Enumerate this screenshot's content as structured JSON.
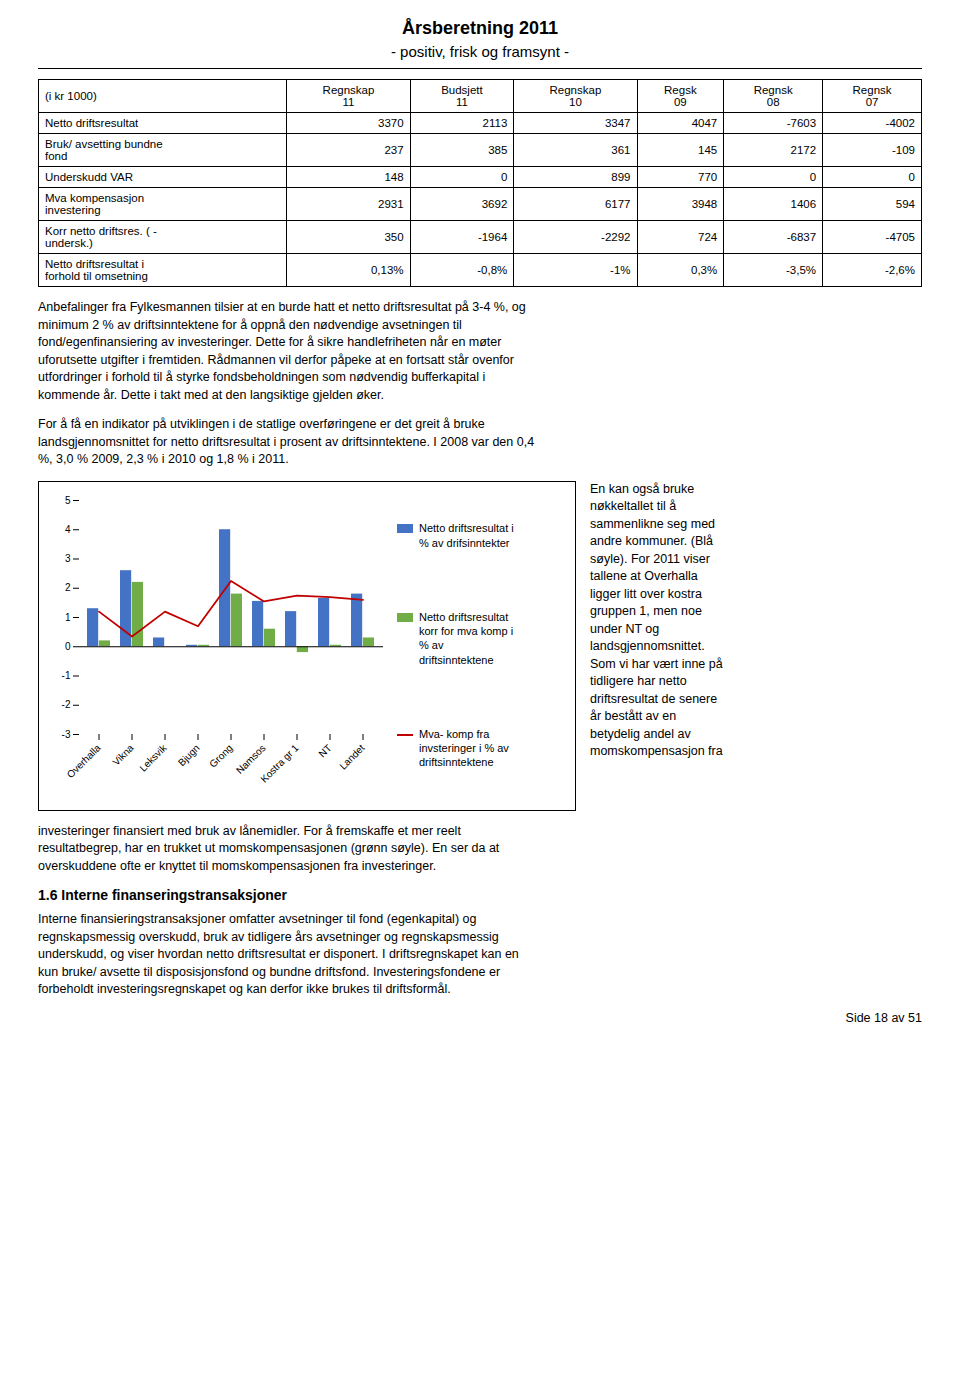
{
  "chart_data": {
    "type": "bar",
    "title": "Årsberetning 2011",
    "subtitle": "- positiv, frisk og framsynt -",
    "categories": [
      "Overhalla",
      "Vikna",
      "Leksvik",
      "Bjugn",
      "Grong",
      "Namsos",
      "Kostra gr 1",
      "NT",
      "Landet"
    ],
    "series": [
      {
        "name": "Netto driftsresultat i\n% av drifsinntekter",
        "type": "bar",
        "color": "#4472C4",
        "values": [
          1.3,
          2.6,
          0.3,
          0.05,
          4.0,
          1.55,
          1.2,
          1.65,
          1.8
        ]
      },
      {
        "name": "Netto driftsresultat\nkorr for mva komp i\n% av\ndriftsinntektene",
        "type": "bar",
        "color": "#70AD47",
        "values": [
          0.2,
          2.2,
          0.0,
          0.05,
          1.8,
          0.6,
          -0.2,
          0.05,
          0.3
        ]
      },
      {
        "name": "Mva- komp fra\ninvsteringer i % av\ndriftsinntektene",
        "type": "line",
        "color": "#C00000",
        "values": [
          1.2,
          0.35,
          1.2,
          0.7,
          2.25,
          1.55,
          1.75,
          1.7,
          1.6
        ]
      }
    ],
    "ylim": [
      -3,
      5
    ],
    "yticks": [
      -3,
      -2,
      -1,
      0,
      1,
      2,
      3,
      4,
      5
    ],
    "grid": false,
    "legend": "right",
    "table": {
      "columns": [
        "(i kr 1000)",
        "Regnskap\n11",
        "Budsjett\n11",
        "Regnskap\n10",
        "Regsk\n09",
        "Regnsk\n08",
        "Regnsk\n07"
      ],
      "rows": [
        [
          "Netto driftsresultat",
          "3370",
          "2113",
          "3347",
          "4047",
          "-7603",
          "-4002"
        ],
        [
          "Bruk/ avsetting bundne\nfond",
          "237",
          "385",
          "361",
          "145",
          "2172",
          "-109"
        ],
        [
          "Underskudd VAR",
          "148",
          "0",
          "899",
          "770",
          "0",
          "0"
        ],
        [
          "Mva kompensasjon\ninvestering",
          "2931",
          "3692",
          "6177",
          "3948",
          "1406",
          "594"
        ],
        [
          "Korr netto driftsres. ( -\nundersk.)",
          "350",
          "-1964",
          "-2292",
          "724",
          "-6837",
          "-4705"
        ],
        [
          "Netto driftsresultat i\nforhold til omsetning",
          "0,13%",
          "-0,8%",
          "-1%",
          "0,3%",
          "-3,5%",
          "-2,6%"
        ]
      ]
    },
    "annotations": [
      "Anbefalinger fra Fylkesmannen tilsier at en burde hatt et netto driftsresultat på 3-4 %, og\nminimum 2 % av driftsinntektene for å oppnå den nødvendige avsetningen til\nfond/egenfinansiering av investeringer. Dette for å sikre handlefriheten når en møter\nuforutsette utgifter i fremtiden. Rådmannen vil derfor påpeke at en fortsatt står ovenfor\nutfordringer i forhold til å styrke fondsbeholdningen som nødvendig bufferkapital i\nkommende år. Dette i takt med at den langsiktige gjelden øker.",
      "For å få en indikator på utviklingen i de statlige overføringene er det greit å bruke\nlandsgjennomsnittet for netto driftsresultat i prosent av driftsinntektene. I 2008 var den 0,4\n%, 3,0 % 2009, 2,3 % i  2010 og 1,8 % i 2011.",
      "En kan også bruke\nnøkkeltallet til å\nsammenlikne seg med\nandre kommuner. (Blå\nsøyle). For 2011 viser\ntallene at Overhalla\nligger litt over  kostra\ngruppen 1, men noe\nunder NT og\nlandsgjennomsnittet.\nSom vi har vært inne på\ntidligere har netto\ndriftsresultat de senere\når bestått av en\nbetydelig andel av\nmomskompensasjon fra",
      "investeringer finansiert med bruk av lånemidler. For å fremskaffe et mer reelt\nresultatbegrep, har en trukket ut momskompensasjonen (grønn søyle). En ser da at\noverskuddene ofte er knyttet til momskompensasjonen fra investeringer.",
      "1.6 Interne finanseringstransaksjoner",
      "Interne finansieringstransaksjoner omfatter avsetninger til fond (egenkapital) og\nregnskapsmessig overskudd, bruk av tidligere års avsetninger og regnskapsmessig\nunderskudd, og viser hvordan netto driftsresultat er disponert. I driftsregnskapet kan en\nkun bruke/ avsette til disposisjonsfond og bundne driftsfond. Investeringsfondene er\nforbeholdt investeringsregnskapet og kan derfor ikke brukes til driftsformål.",
      "Side 18 av 51"
    ]
  }
}
